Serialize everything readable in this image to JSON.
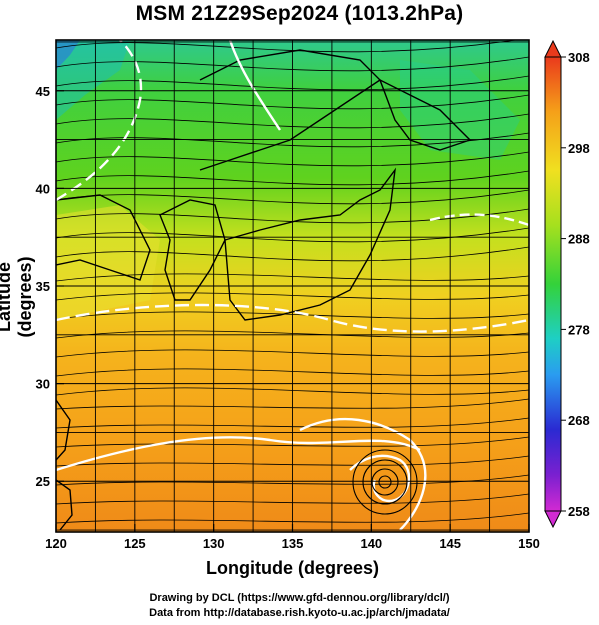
{
  "title": "MSM 21Z29Sep2024 (1013.2hPa)",
  "axes": {
    "xlabel": "Longitude (degrees)",
    "ylabel": "Latitude  (degrees)",
    "xlim": [
      120,
      150
    ],
    "ylim": [
      22.4,
      47.6
    ],
    "xticks": [
      120,
      125,
      130,
      135,
      140,
      145,
      150
    ],
    "yticks": [
      25,
      30,
      35,
      40,
      45
    ],
    "grid": "on"
  },
  "colorbar": {
    "range": [
      258,
      308
    ],
    "ticks": [
      308,
      298,
      288,
      278,
      268,
      258
    ],
    "colors": [
      "#d22ad2",
      "#2a2ad2",
      "#2a9cf0",
      "#1ecfc4",
      "#34d23a",
      "#a6e01e",
      "#f0e020",
      "#f5a019",
      "#ea3a1c"
    ]
  },
  "credits": {
    "line1": "Drawing by DCL (https://www.gfd-dennou.org/library/dcl/)",
    "line2": "Data from http://database.rish.kyoto-u.ac.jp/arch/jmadata/"
  },
  "chart_data": {
    "type": "heatmap",
    "field": "temperature (K) with wind streamlines",
    "features": [
      "tropical-cyclone-center near 141E 25.5N"
    ]
  }
}
